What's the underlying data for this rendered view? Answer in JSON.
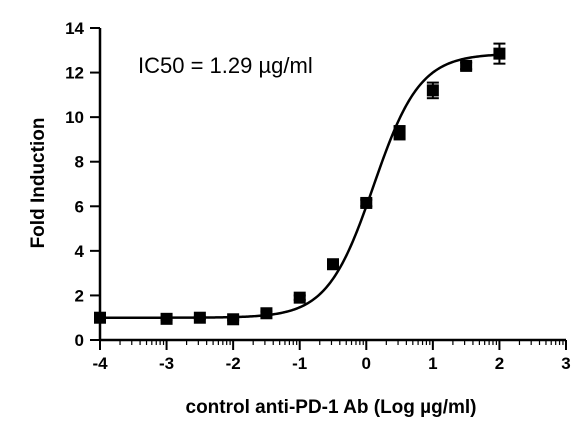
{
  "chart_data": {
    "type": "scatter",
    "xlabel": "control anti-PD-1 Ab (Log µg/ml)",
    "ylabel": "Fold Induction",
    "annotation": "IC50 = 1.29 µg/ml",
    "xlim": [
      -4,
      3
    ],
    "ylim": [
      0,
      14
    ],
    "x_ticks": [
      "-4",
      "-3",
      "-2",
      "-1",
      "0",
      "1",
      "2",
      "3"
    ],
    "y_ticks": [
      "0",
      "2",
      "4",
      "6",
      "8",
      "10",
      "12",
      "14"
    ],
    "grid": false,
    "legend": "none",
    "series": [
      {
        "x": [
          -4,
          -3,
          -2.5,
          -2,
          -1.5,
          -1,
          -0.5,
          0,
          0.5,
          1,
          1.5,
          2
        ],
        "y": [
          1.0,
          0.95,
          1.0,
          0.93,
          1.2,
          1.9,
          3.4,
          6.15,
          9.3,
          11.2,
          12.3,
          12.85
        ],
        "err": [
          0.05,
          0.05,
          0.05,
          0.05,
          0.08,
          0.1,
          0.12,
          0.15,
          0.3,
          0.35,
          0.15,
          0.45
        ]
      }
    ],
    "fit_curve": {
      "bottom": 1.0,
      "top": 12.85,
      "log_ec50": 0.11,
      "hill": 1.25
    }
  }
}
